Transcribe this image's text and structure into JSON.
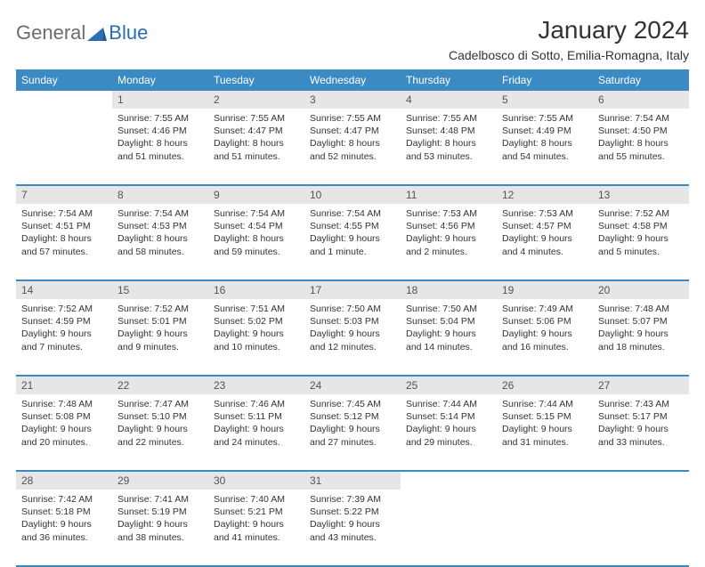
{
  "brand": {
    "text_general": "General",
    "text_blue": "Blue",
    "general_color": "#6c6c6c",
    "blue_color": "#2a6fb0"
  },
  "header": {
    "month_title": "January 2024",
    "location": "Cadelbosco di Sotto, Emilia-Romagna, Italy"
  },
  "colors": {
    "header_bg": "#3b8ac4",
    "header_fg": "#ffffff",
    "daynum_bg": "#e6e6e6",
    "daynum_fg": "#555555",
    "row_divider": "#3b8ac4",
    "body_text": "#333333",
    "page_bg": "#ffffff"
  },
  "day_headers": [
    "Sunday",
    "Monday",
    "Tuesday",
    "Wednesday",
    "Thursday",
    "Friday",
    "Saturday"
  ],
  "weeks": [
    {
      "days": [
        {
          "num": "",
          "sunrise": "",
          "sunset": "",
          "daylight": ""
        },
        {
          "num": "1",
          "sunrise": "Sunrise: 7:55 AM",
          "sunset": "Sunset: 4:46 PM",
          "daylight": "Daylight: 8 hours and 51 minutes."
        },
        {
          "num": "2",
          "sunrise": "Sunrise: 7:55 AM",
          "sunset": "Sunset: 4:47 PM",
          "daylight": "Daylight: 8 hours and 51 minutes."
        },
        {
          "num": "3",
          "sunrise": "Sunrise: 7:55 AM",
          "sunset": "Sunset: 4:47 PM",
          "daylight": "Daylight: 8 hours and 52 minutes."
        },
        {
          "num": "4",
          "sunrise": "Sunrise: 7:55 AM",
          "sunset": "Sunset: 4:48 PM",
          "daylight": "Daylight: 8 hours and 53 minutes."
        },
        {
          "num": "5",
          "sunrise": "Sunrise: 7:55 AM",
          "sunset": "Sunset: 4:49 PM",
          "daylight": "Daylight: 8 hours and 54 minutes."
        },
        {
          "num": "6",
          "sunrise": "Sunrise: 7:54 AM",
          "sunset": "Sunset: 4:50 PM",
          "daylight": "Daylight: 8 hours and 55 minutes."
        }
      ]
    },
    {
      "days": [
        {
          "num": "7",
          "sunrise": "Sunrise: 7:54 AM",
          "sunset": "Sunset: 4:51 PM",
          "daylight": "Daylight: 8 hours and 57 minutes."
        },
        {
          "num": "8",
          "sunrise": "Sunrise: 7:54 AM",
          "sunset": "Sunset: 4:53 PM",
          "daylight": "Daylight: 8 hours and 58 minutes."
        },
        {
          "num": "9",
          "sunrise": "Sunrise: 7:54 AM",
          "sunset": "Sunset: 4:54 PM",
          "daylight": "Daylight: 8 hours and 59 minutes."
        },
        {
          "num": "10",
          "sunrise": "Sunrise: 7:54 AM",
          "sunset": "Sunset: 4:55 PM",
          "daylight": "Daylight: 9 hours and 1 minute."
        },
        {
          "num": "11",
          "sunrise": "Sunrise: 7:53 AM",
          "sunset": "Sunset: 4:56 PM",
          "daylight": "Daylight: 9 hours and 2 minutes."
        },
        {
          "num": "12",
          "sunrise": "Sunrise: 7:53 AM",
          "sunset": "Sunset: 4:57 PM",
          "daylight": "Daylight: 9 hours and 4 minutes."
        },
        {
          "num": "13",
          "sunrise": "Sunrise: 7:52 AM",
          "sunset": "Sunset: 4:58 PM",
          "daylight": "Daylight: 9 hours and 5 minutes."
        }
      ]
    },
    {
      "days": [
        {
          "num": "14",
          "sunrise": "Sunrise: 7:52 AM",
          "sunset": "Sunset: 4:59 PM",
          "daylight": "Daylight: 9 hours and 7 minutes."
        },
        {
          "num": "15",
          "sunrise": "Sunrise: 7:52 AM",
          "sunset": "Sunset: 5:01 PM",
          "daylight": "Daylight: 9 hours and 9 minutes."
        },
        {
          "num": "16",
          "sunrise": "Sunrise: 7:51 AM",
          "sunset": "Sunset: 5:02 PM",
          "daylight": "Daylight: 9 hours and 10 minutes."
        },
        {
          "num": "17",
          "sunrise": "Sunrise: 7:50 AM",
          "sunset": "Sunset: 5:03 PM",
          "daylight": "Daylight: 9 hours and 12 minutes."
        },
        {
          "num": "18",
          "sunrise": "Sunrise: 7:50 AM",
          "sunset": "Sunset: 5:04 PM",
          "daylight": "Daylight: 9 hours and 14 minutes."
        },
        {
          "num": "19",
          "sunrise": "Sunrise: 7:49 AM",
          "sunset": "Sunset: 5:06 PM",
          "daylight": "Daylight: 9 hours and 16 minutes."
        },
        {
          "num": "20",
          "sunrise": "Sunrise: 7:48 AM",
          "sunset": "Sunset: 5:07 PM",
          "daylight": "Daylight: 9 hours and 18 minutes."
        }
      ]
    },
    {
      "days": [
        {
          "num": "21",
          "sunrise": "Sunrise: 7:48 AM",
          "sunset": "Sunset: 5:08 PM",
          "daylight": "Daylight: 9 hours and 20 minutes."
        },
        {
          "num": "22",
          "sunrise": "Sunrise: 7:47 AM",
          "sunset": "Sunset: 5:10 PM",
          "daylight": "Daylight: 9 hours and 22 minutes."
        },
        {
          "num": "23",
          "sunrise": "Sunrise: 7:46 AM",
          "sunset": "Sunset: 5:11 PM",
          "daylight": "Daylight: 9 hours and 24 minutes."
        },
        {
          "num": "24",
          "sunrise": "Sunrise: 7:45 AM",
          "sunset": "Sunset: 5:12 PM",
          "daylight": "Daylight: 9 hours and 27 minutes."
        },
        {
          "num": "25",
          "sunrise": "Sunrise: 7:44 AM",
          "sunset": "Sunset: 5:14 PM",
          "daylight": "Daylight: 9 hours and 29 minutes."
        },
        {
          "num": "26",
          "sunrise": "Sunrise: 7:44 AM",
          "sunset": "Sunset: 5:15 PM",
          "daylight": "Daylight: 9 hours and 31 minutes."
        },
        {
          "num": "27",
          "sunrise": "Sunrise: 7:43 AM",
          "sunset": "Sunset: 5:17 PM",
          "daylight": "Daylight: 9 hours and 33 minutes."
        }
      ]
    },
    {
      "days": [
        {
          "num": "28",
          "sunrise": "Sunrise: 7:42 AM",
          "sunset": "Sunset: 5:18 PM",
          "daylight": "Daylight: 9 hours and 36 minutes."
        },
        {
          "num": "29",
          "sunrise": "Sunrise: 7:41 AM",
          "sunset": "Sunset: 5:19 PM",
          "daylight": "Daylight: 9 hours and 38 minutes."
        },
        {
          "num": "30",
          "sunrise": "Sunrise: 7:40 AM",
          "sunset": "Sunset: 5:21 PM",
          "daylight": "Daylight: 9 hours and 41 minutes."
        },
        {
          "num": "31",
          "sunrise": "Sunrise: 7:39 AM",
          "sunset": "Sunset: 5:22 PM",
          "daylight": "Daylight: 9 hours and 43 minutes."
        },
        {
          "num": "",
          "sunrise": "",
          "sunset": "",
          "daylight": ""
        },
        {
          "num": "",
          "sunrise": "",
          "sunset": "",
          "daylight": ""
        },
        {
          "num": "",
          "sunrise": "",
          "sunset": "",
          "daylight": ""
        }
      ]
    }
  ]
}
